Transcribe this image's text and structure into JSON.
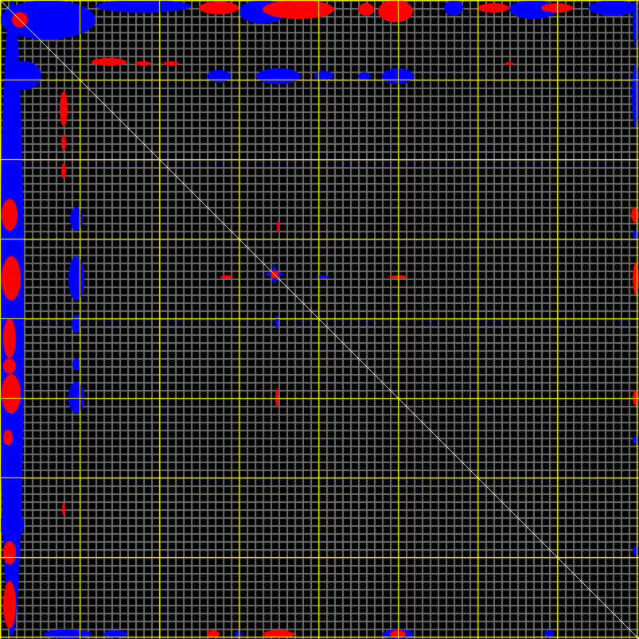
{
  "map": {
    "colors": {
      "background": "#000000",
      "minor_grid": "#6e6e6e",
      "major_grid": "#ffff00",
      "diagonal": "#ffffff",
      "positive": "#ff0000",
      "negative": "#0000ff"
    },
    "minor_grid_step": 10,
    "major_grid_step": 100
  }
}
